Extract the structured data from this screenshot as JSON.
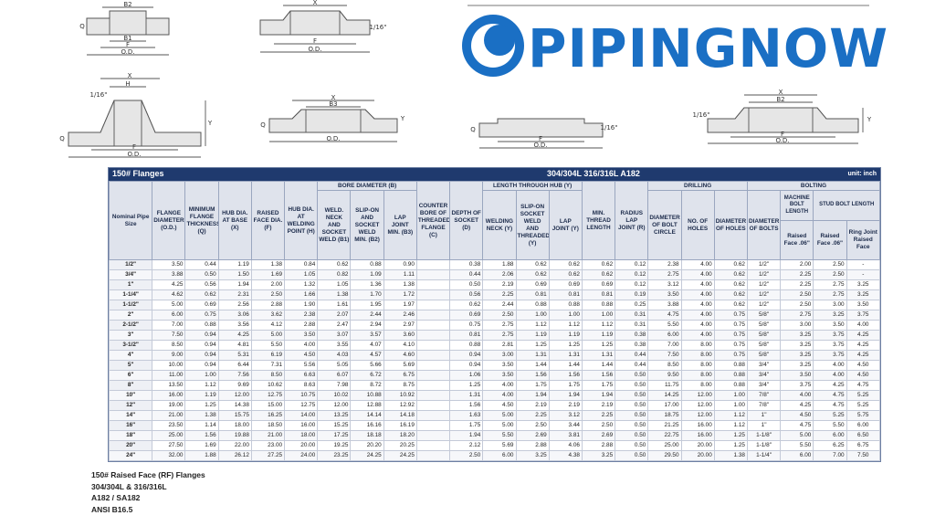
{
  "logo": "PIPINGNOW",
  "diagrams": [
    {
      "labels": [
        "B2",
        "B1",
        "F",
        "O.D.",
        "Q"
      ]
    },
    {
      "labels": [
        "X",
        "F",
        "O.D.",
        "1/16\""
      ]
    },
    {
      "labels": [
        "X",
        "H",
        "1/16\"",
        "F",
        "O.D.",
        "Q",
        "Y"
      ]
    },
    {
      "labels": [
        "X",
        "B3",
        "O.D.",
        "Q",
        "Y"
      ]
    },
    {
      "labels": [
        "F",
        "O.D.",
        "Q",
        "1/16\""
      ]
    },
    {
      "labels": [
        "X",
        "B2",
        "F",
        "O.D.",
        "Y",
        "1/16\""
      ]
    }
  ],
  "table": {
    "title": "150# Flanges",
    "materials": "304/304L  316/316L  A182",
    "unit": "unit: inch",
    "groups": {
      "bore": "BORE DIAMETER (B)",
      "length": "LENGTH THROUGH HUB (Y)",
      "drilling": "DRILLING",
      "bolting": "BOLTING",
      "machine": "MACHINE BOLT LENGTH",
      "stud": "STUD BOLT LENGTH"
    },
    "columns": [
      "Nominal Pipe Size",
      "FLANGE DIAMETER (O.D.)",
      "MINIMUM FLANGE THICKNESS (Q)",
      "HUB DIA. AT BASE (X)",
      "RAISED FACE DIA. (F)",
      "HUB DIA. AT WELDING POINT (H)",
      "WELD. NECK AND SOCKET WELD (B1)",
      "SLIP-ON AND SOCKET WELD MIN. (B2)",
      "LAP JOINT MIN. (B3)",
      "COUNTER BORE OF THREADED FLANGE (C)",
      "DEPTH OF SOCKET (D)",
      "WELDING NECK (Y)",
      "SLIP-ON SOCKET WELD AND THREADED (Y)",
      "LAP JOINT (Y)",
      "MIN. THREAD LENGTH",
      "RADIUS LAP JOINT (R)",
      "DIAMETER OF BOLT CIRCLE",
      "NO. OF HOLES",
      "DIAMETER OF HOLES",
      "DIAMETER OF BOLTS",
      "Raised Face .06\"",
      "Raised Face .06\"",
      "Ring Joint Raised Face"
    ],
    "rows": [
      [
        "1/2\"",
        "3.50",
        "0.44",
        "1.19",
        "1.38",
        "0.84",
        "0.62",
        "0.88",
        "0.90",
        null,
        "0.38",
        "1.88",
        "0.62",
        "0.62",
        "0.62",
        "0.12",
        "2.38",
        "4.00",
        "0.62",
        "1/2\"",
        "2.00",
        "2.50",
        "-"
      ],
      [
        "3/4\"",
        "3.88",
        "0.50",
        "1.50",
        "1.69",
        "1.05",
        "0.82",
        "1.09",
        "1.11",
        null,
        "0.44",
        "2.06",
        "0.62",
        "0.62",
        "0.62",
        "0.12",
        "2.75",
        "4.00",
        "0.62",
        "1/2\"",
        "2.25",
        "2.50",
        "-"
      ],
      [
        "1\"",
        "4.25",
        "0.56",
        "1.94",
        "2.00",
        "1.32",
        "1.05",
        "1.36",
        "1.38",
        null,
        "0.50",
        "2.19",
        "0.69",
        "0.69",
        "0.69",
        "0.12",
        "3.12",
        "4.00",
        "0.62",
        "1/2\"",
        "2.25",
        "2.75",
        "3.25"
      ],
      [
        "1-1/4\"",
        "4.62",
        "0.62",
        "2.31",
        "2.50",
        "1.66",
        "1.38",
        "1.70",
        "1.72",
        null,
        "0.56",
        "2.25",
        "0.81",
        "0.81",
        "0.81",
        "0.19",
        "3.50",
        "4.00",
        "0.62",
        "1/2\"",
        "2.50",
        "2.75",
        "3.25"
      ],
      [
        "1-1/2\"",
        "5.00",
        "0.69",
        "2.56",
        "2.88",
        "1.90",
        "1.61",
        "1.95",
        "1.97",
        null,
        "0.62",
        "2.44",
        "0.88",
        "0.88",
        "0.88",
        "0.25",
        "3.88",
        "4.00",
        "0.62",
        "1/2\"",
        "2.50",
        "3.00",
        "3.50"
      ],
      [
        "2\"",
        "6.00",
        "0.75",
        "3.06",
        "3.62",
        "2.38",
        "2.07",
        "2.44",
        "2.46",
        null,
        "0.69",
        "2.50",
        "1.00",
        "1.00",
        "1.00",
        "0.31",
        "4.75",
        "4.00",
        "0.75",
        "5/8\"",
        "2.75",
        "3.25",
        "3.75"
      ],
      [
        "2-1/2\"",
        "7.00",
        "0.88",
        "3.56",
        "4.12",
        "2.88",
        "2.47",
        "2.94",
        "2.97",
        null,
        "0.75",
        "2.75",
        "1.12",
        "1.12",
        "1.12",
        "0.31",
        "5.50",
        "4.00",
        "0.75",
        "5/8\"",
        "3.00",
        "3.50",
        "4.00"
      ],
      [
        "3\"",
        "7.50",
        "0.94",
        "4.25",
        "5.00",
        "3.50",
        "3.07",
        "3.57",
        "3.60",
        null,
        "0.81",
        "2.75",
        "1.19",
        "1.19",
        "1.19",
        "0.38",
        "6.00",
        "4.00",
        "0.75",
        "5/8\"",
        "3.25",
        "3.75",
        "4.25"
      ],
      [
        "3-1/2\"",
        "8.50",
        "0.94",
        "4.81",
        "5.50",
        "4.00",
        "3.55",
        "4.07",
        "4.10",
        null,
        "0.88",
        "2.81",
        "1.25",
        "1.25",
        "1.25",
        "0.38",
        "7.00",
        "8.00",
        "0.75",
        "5/8\"",
        "3.25",
        "3.75",
        "4.25"
      ],
      [
        "4\"",
        "9.00",
        "0.94",
        "5.31",
        "6.19",
        "4.50",
        "4.03",
        "4.57",
        "4.60",
        null,
        "0.94",
        "3.00",
        "1.31",
        "1.31",
        "1.31",
        "0.44",
        "7.50",
        "8.00",
        "0.75",
        "5/8\"",
        "3.25",
        "3.75",
        "4.25"
      ],
      [
        "5\"",
        "10.00",
        "0.94",
        "6.44",
        "7.31",
        "5.56",
        "5.05",
        "5.66",
        "5.69",
        null,
        "0.94",
        "3.50",
        "1.44",
        "1.44",
        "1.44",
        "0.44",
        "8.50",
        "8.00",
        "0.88",
        "3/4\"",
        "3.25",
        "4.00",
        "4.50"
      ],
      [
        "6\"",
        "11.00",
        "1.00",
        "7.56",
        "8.50",
        "6.63",
        "6.07",
        "6.72",
        "6.75",
        null,
        "1.06",
        "3.50",
        "1.56",
        "1.56",
        "1.56",
        "0.50",
        "9.50",
        "8.00",
        "0.88",
        "3/4\"",
        "3.50",
        "4.00",
        "4.50"
      ],
      [
        "8\"",
        "13.50",
        "1.12",
        "9.69",
        "10.62",
        "8.63",
        "7.98",
        "8.72",
        "8.75",
        null,
        "1.25",
        "4.00",
        "1.75",
        "1.75",
        "1.75",
        "0.50",
        "11.75",
        "8.00",
        "0.88",
        "3/4\"",
        "3.75",
        "4.25",
        "4.75"
      ],
      [
        "10\"",
        "16.00",
        "1.19",
        "12.00",
        "12.75",
        "10.75",
        "10.02",
        "10.88",
        "10.92",
        null,
        "1.31",
        "4.00",
        "1.94",
        "1.94",
        "1.94",
        "0.50",
        "14.25",
        "12.00",
        "1.00",
        "7/8\"",
        "4.00",
        "4.75",
        "5.25"
      ],
      [
        "12\"",
        "19.00",
        "1.25",
        "14.38",
        "15.00",
        "12.75",
        "12.00",
        "12.88",
        "12.92",
        null,
        "1.56",
        "4.50",
        "2.19",
        "2.19",
        "2.19",
        "0.50",
        "17.00",
        "12.00",
        "1.00",
        "7/8\"",
        "4.25",
        "4.75",
        "5.25"
      ],
      [
        "14\"",
        "21.00",
        "1.38",
        "15.75",
        "16.25",
        "14.00",
        "13.25",
        "14.14",
        "14.18",
        null,
        "1.63",
        "5.00",
        "2.25",
        "3.12",
        "2.25",
        "0.50",
        "18.75",
        "12.00",
        "1.12",
        "1\"",
        "4.50",
        "5.25",
        "5.75"
      ],
      [
        "16\"",
        "23.50",
        "1.14",
        "18.00",
        "18.50",
        "16.00",
        "15.25",
        "16.16",
        "16.19",
        null,
        "1.75",
        "5.00",
        "2.50",
        "3.44",
        "2.50",
        "0.50",
        "21.25",
        "16.00",
        "1.12",
        "1\"",
        "4.75",
        "5.50",
        "6.00"
      ],
      [
        "18\"",
        "25.00",
        "1.56",
        "19.88",
        "21.00",
        "18.00",
        "17.25",
        "18.18",
        "18.20",
        null,
        "1.94",
        "5.50",
        "2.69",
        "3.81",
        "2.69",
        "0.50",
        "22.75",
        "16.00",
        "1.25",
        "1-1/8\"",
        "5.00",
        "6.00",
        "6.50"
      ],
      [
        "20\"",
        "27.50",
        "1.69",
        "22.00",
        "23.00",
        "20.00",
        "19.25",
        "20.20",
        "20.25",
        null,
        "2.12",
        "5.69",
        "2.88",
        "4.06",
        "2.88",
        "0.50",
        "25.00",
        "20.00",
        "1.25",
        "1-1/8\"",
        "5.50",
        "6.25",
        "6.75"
      ],
      [
        "24\"",
        "32.00",
        "1.88",
        "26.12",
        "27.25",
        "24.00",
        "23.25",
        "24.25",
        "24.25",
        null,
        "2.50",
        "6.00",
        "3.25",
        "4.38",
        "3.25",
        "0.50",
        "29.50",
        "20.00",
        "1.38",
        "1-1/4\"",
        "6.00",
        "7.00",
        "7.50"
      ]
    ]
  },
  "notes": [
    "150# Raised Face (RF) Flanges",
    "304/304L & 316/316L",
    "A182 / SA182",
    "ANSI B16.5"
  ]
}
